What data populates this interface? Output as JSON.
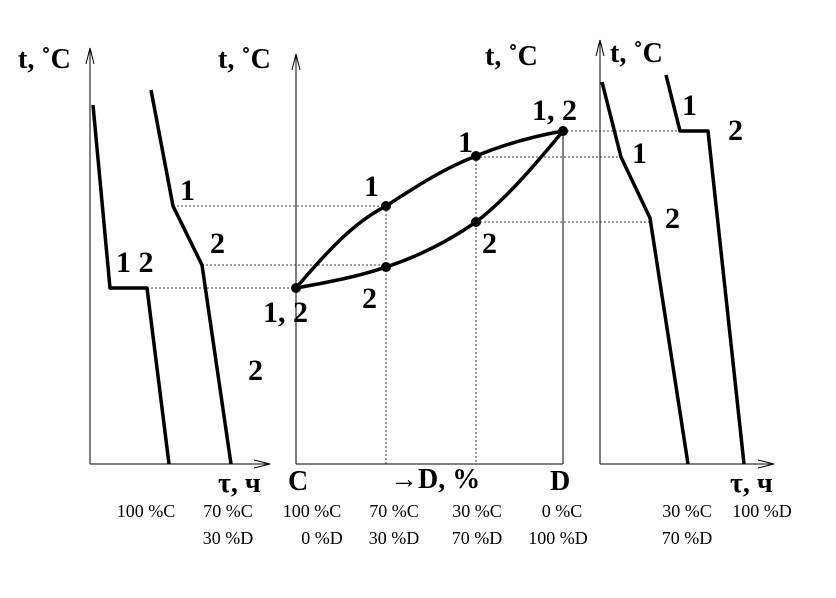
{
  "left_cooling": {
    "y_axis": "t, ˚C",
    "x_axis": "τ, ч",
    "curve_labels": [
      "1 2",
      "1",
      "2",
      "2"
    ],
    "compositions": [
      [
        "100 %C"
      ],
      [
        "70 %C",
        "30 %D"
      ]
    ]
  },
  "phase_diagram": {
    "y_axis": "t, ˚C",
    "y_axis_right": "t, ˚C",
    "x_start": "C",
    "x_axis": "→D, %",
    "x_end": "D",
    "labels": [
      "1",
      "2",
      "1",
      "2",
      "1, 2",
      "1, 2"
    ],
    "compositions": [
      [
        "100 %C",
        "0 %D"
      ],
      [
        "70 %C",
        "30 %D"
      ],
      [
        "30 %C",
        "70 %D"
      ],
      [
        "0 %C",
        "100 %D"
      ]
    ]
  },
  "right_cooling": {
    "y_axis": "t, ˚C",
    "x_axis": "τ, ч",
    "curve_labels": [
      "1",
      "2",
      "1",
      "2"
    ],
    "compositions": [
      [
        "30 %C",
        "70 %D"
      ],
      [
        "100 %D"
      ]
    ]
  }
}
